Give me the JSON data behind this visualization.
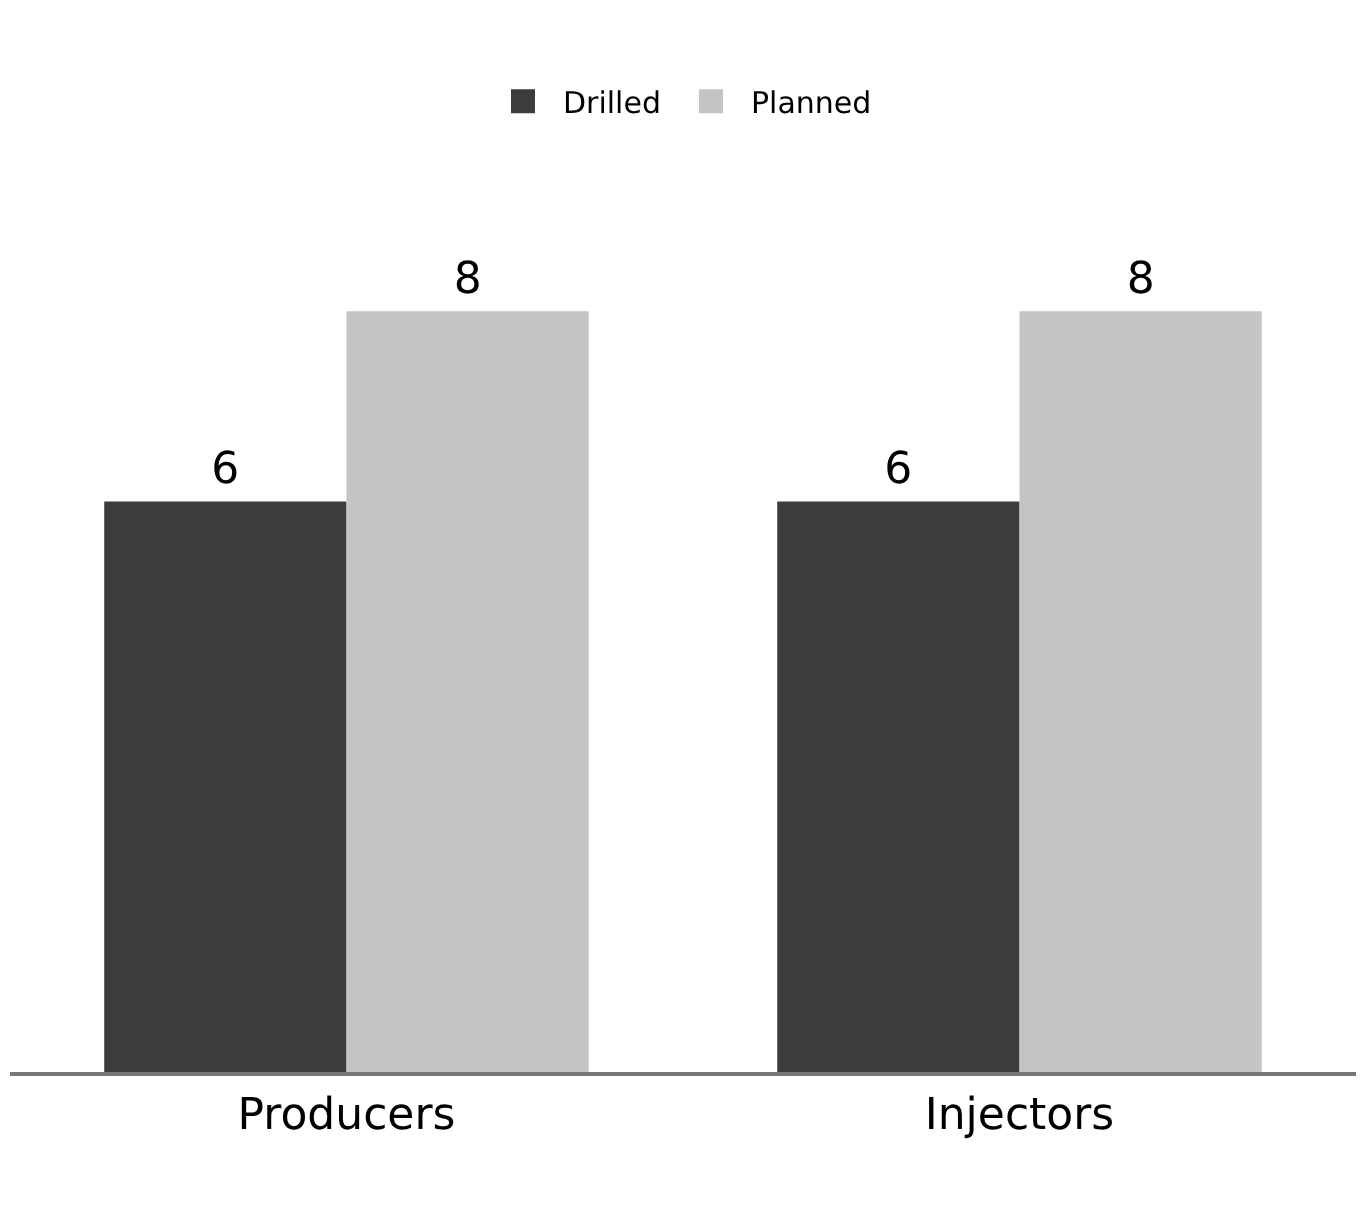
{
  "chart_data": {
    "type": "bar",
    "categories": [
      "Producers",
      "Injectors"
    ],
    "series": [
      {
        "name": "Drilled",
        "color": "#3c3c3c",
        "values": [
          6,
          6
        ]
      },
      {
        "name": "Planned",
        "color": "#c4c4c4",
        "values": [
          8,
          8
        ]
      }
    ],
    "data_labels": true,
    "legend": "top",
    "tick_labels": "x"
  }
}
